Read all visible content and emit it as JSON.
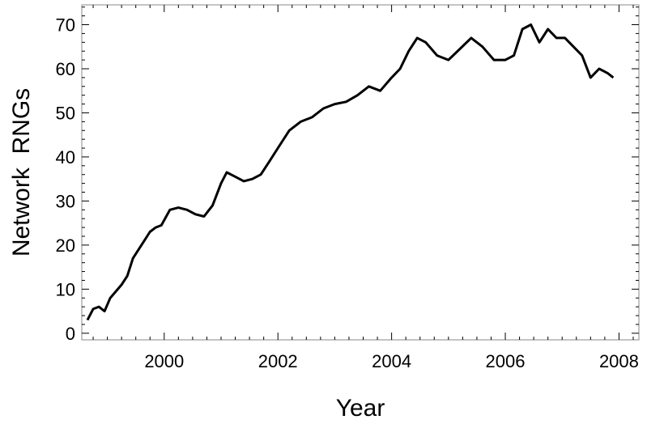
{
  "chart_data": {
    "type": "line",
    "title": "",
    "xlabel": "Year",
    "ylabel": "Network  RNGs",
    "xlim": [
      1998.55,
      2008.35
    ],
    "ylim": [
      -1.5,
      74.5
    ],
    "xticks": [
      2000,
      2002,
      2004,
      2006,
      2008
    ],
    "yticks": [
      0,
      10,
      20,
      30,
      40,
      50,
      60,
      70
    ],
    "grid": false,
    "legend": "none",
    "series": [
      {
        "color": "#000000",
        "x": [
          1998.65,
          1998.75,
          1998.85,
          1998.95,
          1999.05,
          1999.15,
          1999.25,
          1999.35,
          1999.45,
          1999.55,
          1999.65,
          1999.75,
          1999.85,
          1999.95,
          2000.1,
          2000.25,
          2000.4,
          2000.55,
          2000.7,
          2000.85,
          2001.0,
          2001.1,
          2001.25,
          2001.4,
          2001.55,
          2001.7,
          2001.85,
          2002.0,
          2002.2,
          2002.4,
          2002.6,
          2002.8,
          2003.0,
          2003.2,
          2003.4,
          2003.6,
          2003.8,
          2004.0,
          2004.15,
          2004.3,
          2004.45,
          2004.6,
          2004.8,
          2005.0,
          2005.2,
          2005.4,
          2005.6,
          2005.8,
          2006.0,
          2006.15,
          2006.3,
          2006.45,
          2006.6,
          2006.75,
          2006.9,
          2007.05,
          2007.2,
          2007.35,
          2007.5,
          2007.65,
          2007.8,
          2007.9
        ],
        "y": [
          3,
          5.5,
          6,
          5,
          8,
          9.5,
          11,
          13,
          17,
          19,
          21,
          23,
          24,
          24.5,
          28,
          28.5,
          28,
          27,
          26.5,
          29,
          34,
          36.5,
          35.5,
          34.5,
          35,
          36,
          39,
          42,
          46,
          48,
          49,
          51,
          52,
          52.5,
          54,
          56,
          55,
          58,
          60,
          64,
          67,
          66,
          63,
          62,
          64.5,
          67,
          65,
          62,
          62,
          63,
          69,
          70,
          66,
          69,
          67,
          67,
          65,
          63,
          58,
          60,
          59,
          58
        ]
      }
    ]
  }
}
